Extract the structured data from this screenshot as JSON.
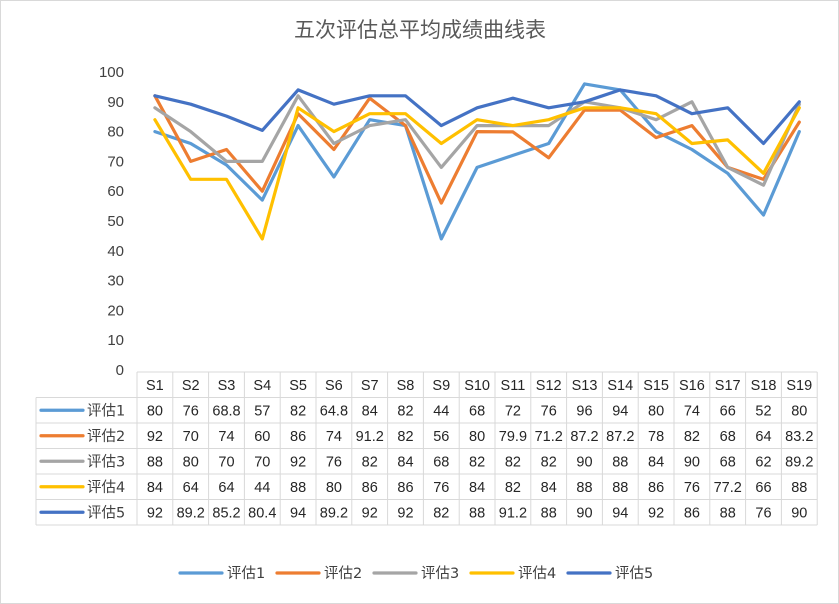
{
  "chart_data": {
    "type": "line",
    "title": "五次评估总平均成绩曲线表",
    "xlabel": "",
    "ylabel": "",
    "ylim": [
      0,
      100
    ],
    "yticks": [
      "0",
      "10",
      "20",
      "30",
      "40",
      "50",
      "60",
      "70",
      "80",
      "90",
      "100"
    ],
    "categories": [
      "S1",
      "S2",
      "S3",
      "S4",
      "S5",
      "S6",
      "S7",
      "S8",
      "S9",
      "S10",
      "S11",
      "S12",
      "S13",
      "S14",
      "S15",
      "S16",
      "S17",
      "S18",
      "S19"
    ],
    "grid": false,
    "legend_position": "bottom",
    "series": [
      {
        "name": "评估1",
        "color": "#5B9BD5",
        "values": [
          80,
          76,
          68.8,
          57,
          82,
          64.8,
          84,
          82,
          44,
          68,
          72,
          76,
          96,
          94,
          80,
          74,
          66,
          52,
          80
        ],
        "labels": [
          "80",
          "76",
          "68.8",
          "57",
          "82",
          "64.8",
          "84",
          "82",
          "44",
          "68",
          "72",
          "76",
          "96",
          "94",
          "80",
          "74",
          "66",
          "52",
          "80"
        ]
      },
      {
        "name": "评估2",
        "color": "#ED7D31",
        "values": [
          92,
          70,
          74,
          60,
          86,
          74,
          91.2,
          82,
          56,
          80,
          79.9,
          71.2,
          87.2,
          87.2,
          78,
          82,
          68,
          64,
          83.2
        ],
        "labels": [
          "92",
          "70",
          "74",
          "60",
          "86",
          "74",
          "91.2",
          "82",
          "56",
          "80",
          "79.9",
          "71.2",
          "87.2",
          "87.2",
          "78",
          "82",
          "68",
          "64",
          "83.2"
        ]
      },
      {
        "name": "评估3",
        "color": "#A5A5A5",
        "values": [
          88,
          80,
          70,
          70,
          92,
          76,
          82,
          84,
          68,
          82,
          82,
          82,
          90,
          88,
          84,
          90,
          68,
          62,
          89.2
        ],
        "labels": [
          "88",
          "80",
          "70",
          "70",
          "92",
          "76",
          "82",
          "84",
          "68",
          "82",
          "82",
          "82",
          "90",
          "88",
          "84",
          "90",
          "68",
          "62",
          "89.2"
        ]
      },
      {
        "name": "评估4",
        "color": "#FFC000",
        "values": [
          84,
          64,
          64,
          44,
          88,
          80,
          86,
          86,
          76,
          84,
          82,
          84,
          88,
          88,
          86,
          76,
          77.2,
          66,
          88
        ],
        "labels": [
          "84",
          "64",
          "64",
          "44",
          "88",
          "80",
          "86",
          "86",
          "76",
          "84",
          "82",
          "84",
          "88",
          "88",
          "86",
          "76",
          "77.2",
          "66",
          "88"
        ]
      },
      {
        "name": "评估5",
        "color": "#4472C4",
        "values": [
          92,
          89.2,
          85.2,
          80.4,
          94,
          89.2,
          92,
          92,
          82,
          88,
          91.2,
          88,
          90,
          94,
          92,
          86,
          88,
          76,
          90
        ],
        "labels": [
          "92",
          "89.2",
          "85.2",
          "80.4",
          "94",
          "89.2",
          "92",
          "92",
          "82",
          "88",
          "91.2",
          "88",
          "90",
          "94",
          "92",
          "86",
          "88",
          "76",
          "90"
        ]
      }
    ]
  }
}
